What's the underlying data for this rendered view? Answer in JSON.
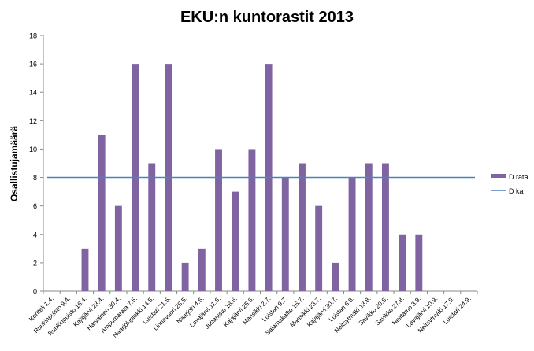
{
  "chart_data": {
    "type": "bar",
    "title": "EKU:n kuntorastit 2013",
    "ylabel": "Osallistujamäärä",
    "xlabel": "",
    "ylim": [
      0,
      18
    ],
    "yticks": [
      0,
      2,
      4,
      6,
      8,
      10,
      12,
      14,
      16,
      18
    ],
    "grid": false,
    "legend_position": "right",
    "categories": [
      "Kortteli 1.4.",
      "Ruukinpuisto 9.4.",
      "Ruukinpuisto 16.4.",
      "Kajajärvi 23.4.",
      "Harvainen 30.4.",
      "Ampumarata 7.5.",
      "Naarjokiplokki 14.5.",
      "Luistari 21.5.",
      "Linnavuori 28.5.",
      "Naarjoki 4.6.",
      "Lavajärvi 11.6.",
      "Juhanisto 18.6.",
      "Kajajärvi 25.6.",
      "Mansikki 2.7.",
      "Luistari 9.7.",
      "Salamakallio 16.7.",
      "Mansikki 23.7.",
      "Kajajärvi 30.7.",
      "Luistari 6.8.",
      "Neitsytmäki 13.8.",
      "Savikko 20.8.",
      "Savikko 27.8.",
      "Neittamo 3.9.",
      "Lavajärvi 10.9.",
      "Neitsytmäki 17.9.",
      "Luistari 24.9."
    ],
    "series": [
      {
        "name": "D rata",
        "kind": "bar",
        "color": "#8064A2",
        "values": [
          0,
          0,
          3,
          11,
          6,
          16,
          9,
          16,
          2,
          3,
          10,
          7,
          10,
          16,
          8,
          9,
          6,
          2,
          8,
          9,
          9,
          4,
          4,
          0,
          0,
          0
        ]
      },
      {
        "name": "D ka",
        "kind": "line",
        "color": "#4F81BD",
        "values": [
          8,
          8,
          8,
          8,
          8,
          8,
          8,
          8,
          8,
          8,
          8,
          8,
          8,
          8,
          8,
          8,
          8,
          8,
          8,
          8,
          8,
          8,
          8,
          8,
          8,
          8
        ]
      }
    ]
  }
}
